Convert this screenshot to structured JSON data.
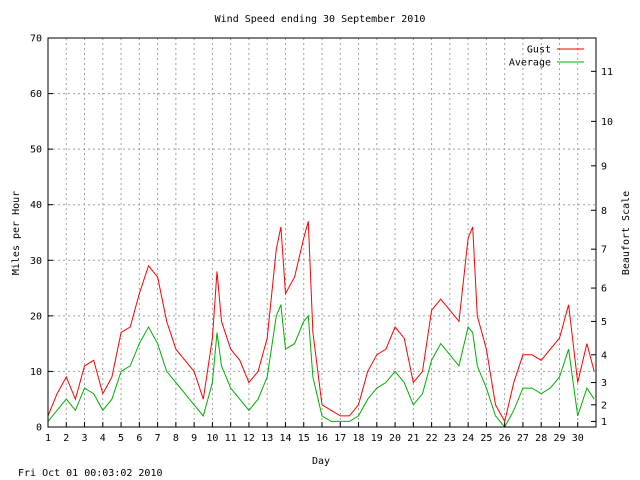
{
  "footer_timestamp": "Fri Oct 01 00:03:02 2010",
  "chart_data": {
    "type": "line",
    "title": "Wind Speed ending 30 September 2010",
    "xlabel": "Day",
    "ylabel": "Miles per Hour",
    "y2label": "Beaufort Scale",
    "xlim": [
      1,
      31
    ],
    "ylim": [
      0,
      70
    ],
    "x_ticks": [
      1,
      2,
      3,
      4,
      5,
      6,
      7,
      8,
      9,
      10,
      11,
      12,
      13,
      14,
      15,
      16,
      17,
      18,
      19,
      20,
      21,
      22,
      23,
      24,
      25,
      26,
      27,
      28,
      29,
      30
    ],
    "y_ticks": [
      0,
      10,
      20,
      30,
      40,
      50,
      60,
      70
    ],
    "y2_ticks": [
      {
        "label": "1",
        "mph": 1
      },
      {
        "label": "2",
        "mph": 4
      },
      {
        "label": "3",
        "mph": 8
      },
      {
        "label": "4",
        "mph": 13
      },
      {
        "label": "5",
        "mph": 19
      },
      {
        "label": "6",
        "mph": 25
      },
      {
        "label": "7",
        "mph": 32
      },
      {
        "label": "8",
        "mph": 39
      },
      {
        "label": "9",
        "mph": 47
      },
      {
        "label": "10",
        "mph": 55
      },
      {
        "label": "11",
        "mph": 64
      }
    ],
    "grid": true,
    "legend": "top-right",
    "series": [
      {
        "name": "Gust",
        "color": "#ff0000",
        "x": [
          1,
          1.5,
          2,
          2.5,
          3,
          3.5,
          4,
          4.5,
          5,
          5.5,
          6,
          6.5,
          7,
          7.5,
          8,
          8.5,
          9,
          9.5,
          10,
          10.25,
          10.5,
          11,
          11.5,
          12,
          12.5,
          13,
          13.5,
          13.75,
          14,
          14.5,
          15,
          15.25,
          15.5,
          16,
          16.5,
          17,
          17.5,
          18,
          18.5,
          19,
          19.5,
          20,
          20.5,
          21,
          21.5,
          22,
          22.5,
          23,
          23.5,
          24,
          24.25,
          24.5,
          25,
          25.5,
          26,
          26.5,
          27,
          27.5,
          28,
          28.5,
          29,
          29.5,
          30,
          30.5,
          30.9
        ],
        "y": [
          2,
          6,
          9,
          5,
          11,
          12,
          6,
          9,
          17,
          18,
          24,
          29,
          27,
          19,
          14,
          12,
          10,
          5,
          16,
          28,
          19,
          14,
          12,
          8,
          10,
          16,
          32,
          36,
          24,
          27,
          34,
          37,
          17,
          4,
          3,
          2,
          2,
          4,
          10,
          13,
          14,
          18,
          16,
          8,
          10,
          21,
          23,
          21,
          19,
          34,
          36,
          20,
          14,
          4,
          1,
          8,
          13,
          13,
          12,
          14,
          16,
          22,
          8,
          15,
          10
        ]
      },
      {
        "name": "Average",
        "color": "#00b000",
        "x": [
          1,
          1.5,
          2,
          2.5,
          3,
          3.5,
          4,
          4.5,
          5,
          5.5,
          6,
          6.5,
          7,
          7.5,
          8,
          8.5,
          9,
          9.5,
          10,
          10.25,
          10.5,
          11,
          11.5,
          12,
          12.5,
          13,
          13.5,
          13.75,
          14,
          14.5,
          15,
          15.25,
          15.5,
          16,
          16.5,
          17,
          17.5,
          18,
          18.5,
          19,
          19.5,
          20,
          20.5,
          21,
          21.5,
          22,
          22.5,
          23,
          23.5,
          24,
          24.25,
          24.5,
          25,
          25.5,
          26,
          26.5,
          27,
          27.5,
          28,
          28.5,
          29,
          29.5,
          30,
          30.5,
          30.9
        ],
        "y": [
          1,
          3,
          5,
          3,
          7,
          6,
          3,
          5,
          10,
          11,
          15,
          18,
          15,
          10,
          8,
          6,
          4,
          2,
          8,
          17,
          11,
          7,
          5,
          3,
          5,
          9,
          20,
          22,
          14,
          15,
          19,
          20,
          9,
          2,
          1,
          1,
          1,
          2,
          5,
          7,
          8,
          10,
          8,
          4,
          6,
          12,
          15,
          13,
          11,
          18,
          17,
          11,
          7,
          2,
          0,
          3,
          7,
          7,
          6,
          7,
          9,
          14,
          2,
          7,
          5
        ]
      }
    ]
  }
}
